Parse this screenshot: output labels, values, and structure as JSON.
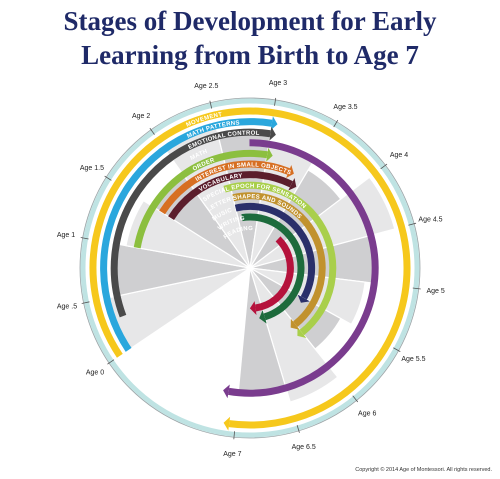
{
  "title_line1": "Stages of Development for Early",
  "title_line2": "Learning from Birth to Age 7",
  "copyright": "Copyright © 2014 Age of Montessori. All rights reserved.",
  "age_labels": [
    "Age 0",
    "Age .5",
    "Age 1",
    "Age 1.5",
    "Age 2",
    "Age 2.5",
    "Age 3",
    "Age 3.5",
    "Age 4",
    "Age 4.5",
    "Age 5",
    "Age 5.5",
    "Age 6",
    "Age 6.5",
    "Age 7"
  ],
  "bands": [
    {
      "label": "MOVEMENT",
      "color": "#f6c81c",
      "start_age": 0,
      "end_age": 7.05
    },
    {
      "label": "MATH PATTERNS",
      "color": "#2aa7dd",
      "start_age": 0,
      "end_age": 3
    },
    {
      "label": "EMOTIONAL CONTROL",
      "color": "#4a4a4a",
      "start_age": 0.3,
      "end_age": 3
    },
    {
      "label": "MATH",
      "color": "#7a3c8e",
      "start_age": 2.8,
      "end_age": 7.1
    },
    {
      "label": "ORDER",
      "color": "#8cbf3f",
      "start_age": 1,
      "end_age": 3
    },
    {
      "label": "INTEREST IN SMALL OBJECTS",
      "color": "#d76f22",
      "start_age": 1.5,
      "end_age": 3.3
    },
    {
      "label": "VOCABULARY",
      "color": "#5b1e2c",
      "start_age": 1.5,
      "end_age": 3.4
    },
    {
      "label": "SPECIAL EPOCH FOR SENSATION",
      "color": "#a9cf4b",
      "start_age": 2.4,
      "end_age": 6
    },
    {
      "label": "LETTER SHAPES AND SOUNDS",
      "color": "#c1922e",
      "start_age": 2.5,
      "end_age": 6
    },
    {
      "label": "MUSIC",
      "color": "#2a2f6a",
      "start_age": 2.5,
      "end_age": 5.5
    },
    {
      "label": "WRITING",
      "color": "#1d6b3c",
      "start_age": 2.6,
      "end_age": 6.5
    },
    {
      "label": "READING",
      "color": "#b5123c",
      "start_age": 3.8,
      "end_age": 6.7
    }
  ],
  "colors": {
    "title": "#1f2a68",
    "segment_light": "#e7e7e8",
    "segment_dark": "#cfcfd1",
    "outer_ring": "#bfe3e3"
  }
}
